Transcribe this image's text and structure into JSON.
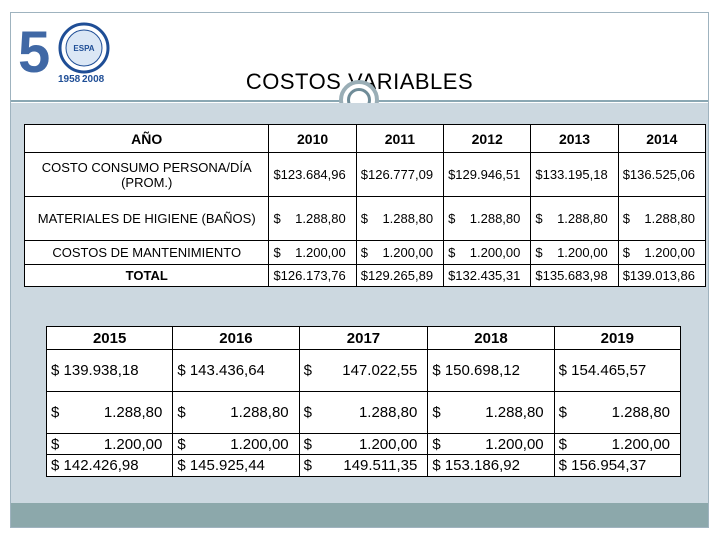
{
  "slide": {
    "title": "COSTOS VARIABLES",
    "logo": {
      "numeral": "50",
      "year_text": "1958 2008",
      "seal_text": "ESPA"
    }
  },
  "table_2010_2014": {
    "header": [
      "AÑO",
      "2010",
      "2011",
      "2012",
      "2013",
      "2014"
    ],
    "rows": [
      {
        "label": "COSTO CONSUMO PERSONA/DÍA (PROM.)",
        "values": [
          "123.684,96",
          "126.777,09",
          "129.946,51",
          "133.195,18",
          "136.525,06"
        ]
      },
      {
        "label": "MATERIALES DE HIGIENE (BAÑOS)",
        "values": [
          "1.288,80",
          "1.288,80",
          "1.288,80",
          "1.288,80",
          "1.288,80"
        ]
      },
      {
        "label": "COSTOS DE MANTENIMIENTO",
        "values": [
          "1.200,00",
          "1.200,00",
          "1.200,00",
          "1.200,00",
          "1.200,00"
        ]
      },
      {
        "label": "TOTAL",
        "values": [
          "126.173,76",
          "129.265,89",
          "132.435,31",
          "135.683,98",
          "139.013,86"
        ]
      }
    ]
  },
  "table_2015_2019": {
    "header": [
      "2015",
      "2016",
      "2017",
      "2018",
      "2019"
    ],
    "rows": [
      {
        "values": [
          "139.938,18",
          "143.436,64",
          "147.022,55",
          "150.698,12",
          "154.465,57"
        ]
      },
      {
        "values": [
          "1.288,80",
          "1.288,80",
          "1.288,80",
          "1.288,80",
          "1.288,80"
        ]
      },
      {
        "values": [
          "1.200,00",
          "1.200,00",
          "1.200,00",
          "1.200,00",
          "1.200,00"
        ]
      },
      {
        "values": [
          "142.426,98",
          "145.925,44",
          "149.511,35",
          "153.186,92",
          "156.954,37"
        ]
      }
    ]
  },
  "currency_symbol": "$",
  "colors": {
    "panel": "#ccd8e0",
    "footer": "#8ca8ab",
    "rule": "#8aa7b3",
    "logo_blue": "#1f4e96"
  }
}
